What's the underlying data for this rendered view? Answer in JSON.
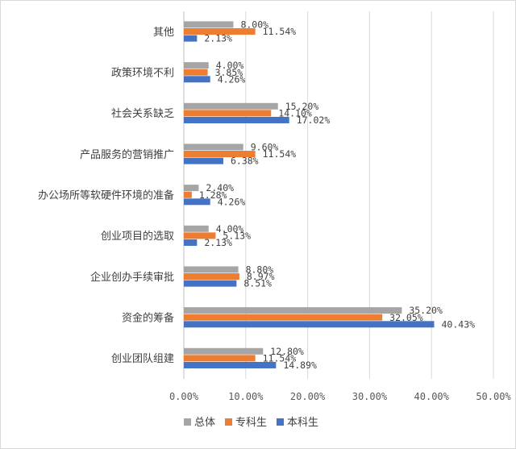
{
  "chart_data": {
    "type": "bar",
    "orientation": "horizontal",
    "categories": [
      "其他",
      "政策环境不利",
      "社会关系缺乏",
      "产品服务的营销推广",
      "办公场所等软硬件环境的准备",
      "创业项目的选取",
      "企业创办手续审批",
      "资金的筹备",
      "创业团队组建"
    ],
    "series": [
      {
        "name": "总体",
        "color": "#a5a5a5",
        "values": [
          8.0,
          4.0,
          15.2,
          9.6,
          2.4,
          4.0,
          8.8,
          35.2,
          12.8
        ],
        "labels": [
          "8.00%",
          "4.00%",
          "15.20%",
          "9.60%",
          "2.40%",
          "4.00%",
          "8.80%",
          "35.20%",
          "12.80%"
        ]
      },
      {
        "name": "专科生",
        "color": "#ed7d31",
        "values": [
          11.54,
          3.85,
          14.1,
          11.54,
          1.28,
          5.13,
          8.97,
          32.05,
          11.54
        ],
        "labels": [
          "11.54%",
          "3.85%",
          "14.10%",
          "11.54%",
          "1.28%",
          "5.13%",
          "8.97%",
          "32.05%",
          "11.54%"
        ]
      },
      {
        "name": "本科生",
        "color": "#4472c4",
        "values": [
          2.13,
          4.26,
          17.02,
          6.38,
          4.26,
          2.13,
          8.51,
          40.43,
          14.89
        ],
        "labels": [
          "2.13%",
          "4.26%",
          "17.02%",
          "6.38%",
          "4.26%",
          "2.13%",
          "8.51%",
          "40.43%",
          "14.89%"
        ]
      }
    ],
    "xlim": [
      0,
      50
    ],
    "ticks": [
      0,
      10,
      20,
      30,
      40,
      50
    ],
    "tick_labels": [
      "0.00%",
      "10.00%",
      "20.00%",
      "30.00%",
      "40.00%",
      "50.00%"
    ],
    "grid": true,
    "legend": "bottom",
    "title": "",
    "xlabel": "",
    "ylabel": ""
  }
}
